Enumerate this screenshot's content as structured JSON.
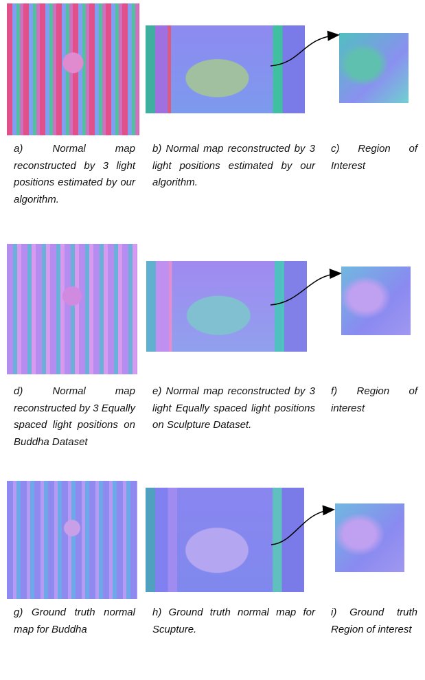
{
  "rows": [
    [
      "a) Normal map reconstructed by 3 light positions estimated by our algorithm.",
      "b) Normal map reconstructed by 3 light positions estimated by our algorithm.",
      "c) Region of Interest"
    ],
    [
      "d) Normal map reconstructed by 3 Equally spaced light positions on Buddha Dataset",
      "e) Normal map reconstructed by 3 light Equally spaced light positions on Sculpture Dataset.",
      "f) Region of interest"
    ],
    [
      "g) Ground truth normal map for Buddha",
      "h) Ground truth normal map for Scupture.",
      "i) Ground truth Region of interest"
    ]
  ]
}
